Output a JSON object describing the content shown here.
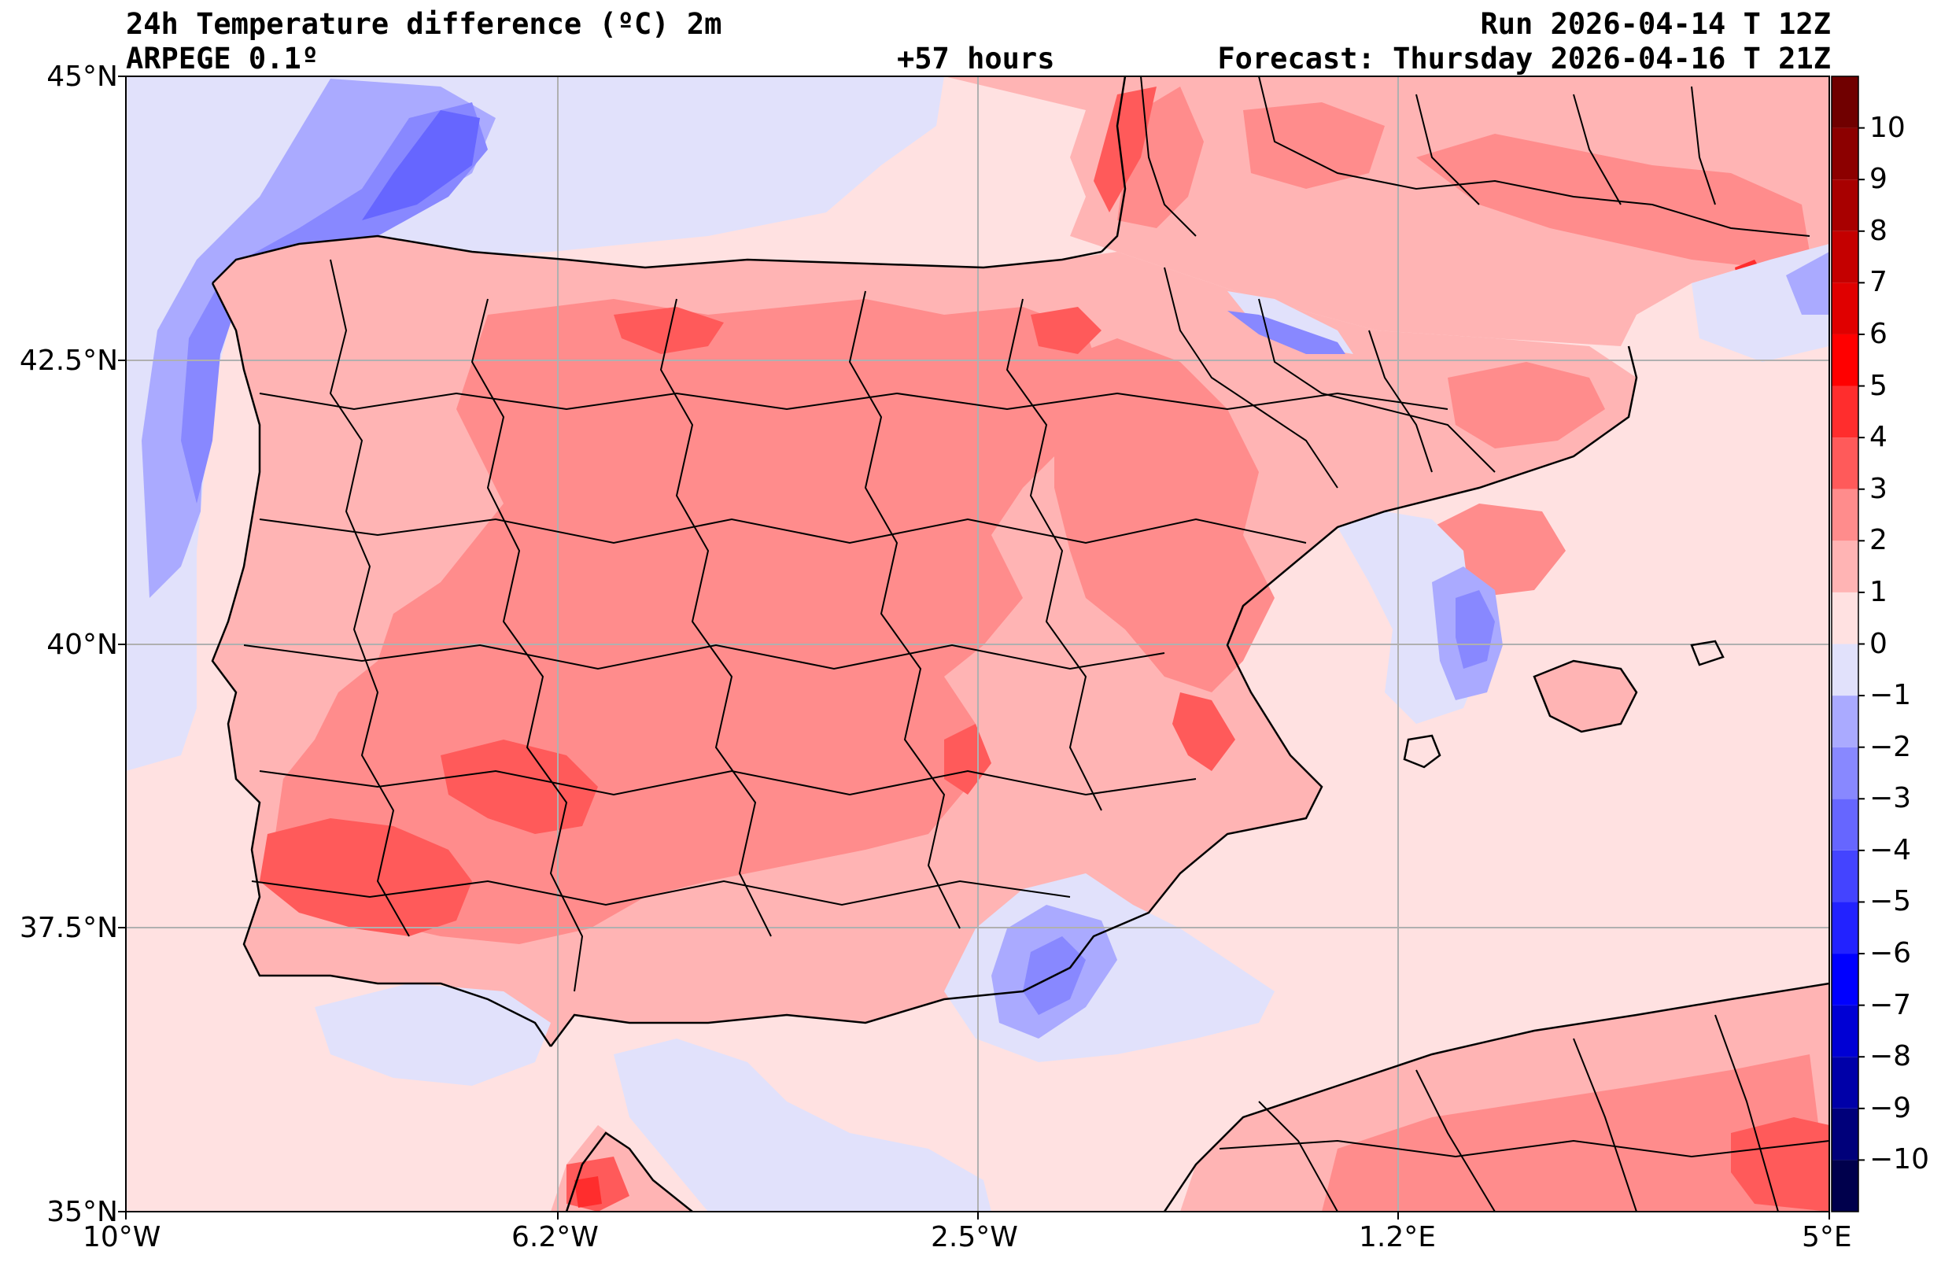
{
  "header": {
    "title": "24h Temperature difference (ºC) 2m",
    "model": "ARPEGE 0.1º",
    "lead_time": "+57 hours",
    "run": "Run 2026-04-14 T 12Z",
    "forecast": "Forecast: Thursday 2026-04-16 T 21Z"
  },
  "map": {
    "region": "Iberian Peninsula",
    "lon_range": [
      -10,
      5
    ],
    "lat_range": [
      35,
      45
    ],
    "lon_ticks": [
      {
        "value": -10,
        "label": "10°W"
      },
      {
        "value": -6.2,
        "label": "6.2°W"
      },
      {
        "value": -2.5,
        "label": "2.5°W"
      },
      {
        "value": 1.2,
        "label": "1.2°E"
      },
      {
        "value": 5,
        "label": "5°E"
      }
    ],
    "lat_ticks": [
      {
        "value": 45,
        "label": "45°N"
      },
      {
        "value": 42.5,
        "label": "42.5°N"
      },
      {
        "value": 40,
        "label": "40°N"
      },
      {
        "value": 37.5,
        "label": "37.5°N"
      },
      {
        "value": 35,
        "label": "35°N"
      }
    ]
  },
  "colorbar": {
    "range": [
      -11,
      11
    ],
    "levels": [
      {
        "value": -11,
        "color": "#00004c"
      },
      {
        "value": -10,
        "color": "#00007a"
      },
      {
        "value": -9,
        "color": "#0000a8"
      },
      {
        "value": -8,
        "color": "#0000d4"
      },
      {
        "value": -7,
        "color": "#0000ff"
      },
      {
        "value": -6,
        "color": "#2222ff"
      },
      {
        "value": -5,
        "color": "#4444ff"
      },
      {
        "value": -4,
        "color": "#6666ff"
      },
      {
        "value": -3,
        "color": "#8888ff"
      },
      {
        "value": -2,
        "color": "#aaaaff"
      },
      {
        "value": -1,
        "color": "#e1e1fb"
      },
      {
        "value": 0,
        "color": "#ffe1e1"
      },
      {
        "value": 1,
        "color": "#ffb4b4"
      },
      {
        "value": 2,
        "color": "#ff8c8c"
      },
      {
        "value": 3,
        "color": "#ff5a5a"
      },
      {
        "value": 4,
        "color": "#ff2d2d"
      },
      {
        "value": 5,
        "color": "#ff0000"
      },
      {
        "value": 6,
        "color": "#e00000"
      },
      {
        "value": 7,
        "color": "#c40000"
      },
      {
        "value": 8,
        "color": "#a80000"
      },
      {
        "value": 9,
        "color": "#8c0000"
      },
      {
        "value": 10,
        "color": "#700000"
      }
    ],
    "tick_labels": [
      "10",
      "9",
      "8",
      "7",
      "6",
      "5",
      "4",
      "3",
      "2",
      "1",
      "0",
      "−1",
      "−2",
      "−3",
      "−4",
      "−5",
      "−6",
      "−7",
      "−8",
      "−9",
      "−10"
    ]
  },
  "colors": {
    "sea_background": "#ffe1e1",
    "land_base": "#ffb4b4",
    "warm_3": "#ff8c8c",
    "warm_4": "#ff5a5a",
    "warm_5": "#ff2d2d",
    "cool_1": "#e1e1fb",
    "cool_2": "#aaaaff",
    "cool_3": "#8888ff",
    "cool_4": "#6666ff",
    "grid": "#b0b0b0",
    "coast": "#000000"
  }
}
